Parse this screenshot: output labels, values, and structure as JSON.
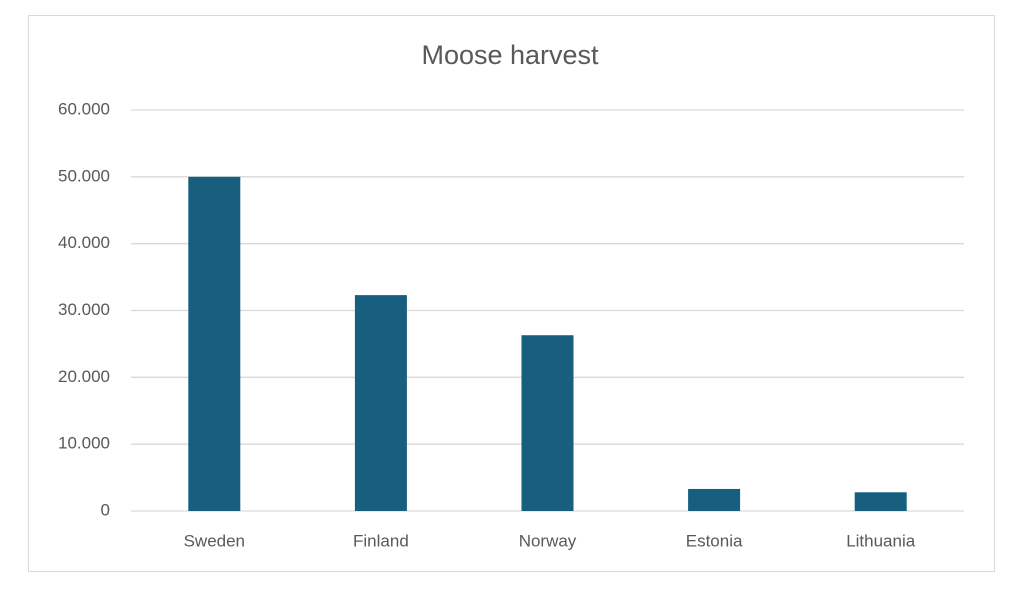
{
  "chart_data": {
    "type": "bar",
    "title": "Moose harvest",
    "categories": [
      "Sweden",
      "Finland",
      "Norway",
      "Estonia",
      "Lithuania"
    ],
    "values": [
      50000,
      32300,
      26300,
      3300,
      2800
    ],
    "color": "#175e7f",
    "ylim": [
      0,
      60000
    ],
    "yticks": [
      0,
      {
        "value": 10000,
        "label": "10.000"
      },
      {
        "value": 20000,
        "label": "20.000"
      },
      {
        "value": 30000,
        "label": "30.000"
      },
      {
        "value": 40000,
        "label": "40.000"
      },
      {
        "value": 50000,
        "label": "50.000"
      },
      {
        "value": 60000,
        "label": "60.000"
      }
    ],
    "grid": true
  }
}
